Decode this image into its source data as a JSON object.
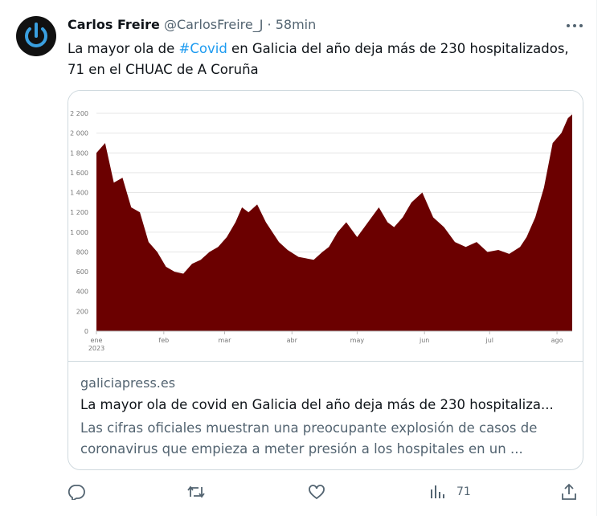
{
  "tweet": {
    "name": "Carlos Freire",
    "handle": "@CarlosFreire_J",
    "separator": "·",
    "time": "58min",
    "text_before": "La mayor ola de ",
    "hashtag": "#Covid",
    "text_after": " en Galicia del año deja más de 230 hospitalizados,",
    "text_line2": "71 en el CHUAC de A Coruña",
    "card": {
      "domain": "galiciapress.es",
      "title": "La mayor ola de covid en Galicia del año deja más de 230 hospitaliza...",
      "description": [
        "Las cifras oficiales muestran una preocupante explosión de casos de",
        "coronavirus que empieza a meter presión a los hospitales en un ..."
      ]
    },
    "views": "71"
  },
  "chart_data": {
    "type": "area",
    "color": "#6b0000",
    "grid": true,
    "x": [
      0,
      4,
      8,
      12,
      16,
      20,
      24,
      28,
      32,
      36,
      40,
      44,
      48,
      52,
      56,
      60,
      64,
      67,
      70,
      74,
      78,
      84,
      88,
      93,
      100,
      104,
      107,
      111,
      115,
      120,
      125,
      130,
      134,
      137,
      141,
      145,
      150,
      155,
      160,
      165,
      170,
      175,
      180,
      185,
      190,
      195,
      198,
      202,
      206,
      210,
      214,
      217,
      219
    ],
    "values": [
      1800,
      1900,
      1500,
      1550,
      1250,
      1200,
      900,
      800,
      650,
      600,
      580,
      680,
      720,
      800,
      850,
      950,
      1100,
      1250,
      1200,
      1280,
      1100,
      900,
      820,
      750,
      720,
      800,
      850,
      1000,
      1100,
      950,
      1100,
      1250,
      1100,
      1050,
      1150,
      1300,
      1400,
      1150,
      1050,
      900,
      850,
      900,
      800,
      820,
      780,
      850,
      950,
      1150,
      1450,
      1900,
      2000,
      2150,
      2190
    ],
    "xlim": [
      0,
      219
    ],
    "xticks": [
      {
        "value": 0,
        "label": "ene"
      },
      {
        "value": 31,
        "label": "feb"
      },
      {
        "value": 59,
        "label": "mar"
      },
      {
        "value": 90,
        "label": "abr"
      },
      {
        "value": 120,
        "label": "may"
      },
      {
        "value": 151,
        "label": "jun"
      },
      {
        "value": 181,
        "label": "jul"
      },
      {
        "value": 212,
        "label": "ago"
      }
    ],
    "year": "2023",
    "ylim": [
      0,
      2200
    ],
    "yticks": [
      0,
      200,
      400,
      600,
      800,
      {
        "value": 1000,
        "label": "1 000"
      },
      {
        "value": 1200,
        "label": "1 200"
      },
      {
        "value": 1400,
        "label": "1 400"
      },
      {
        "value": 1600,
        "label": "1 600"
      },
      {
        "value": 1800,
        "label": "1 800"
      },
      {
        "value": 2000,
        "label": "2 000"
      },
      {
        "value": 2200,
        "label": "2 200"
      }
    ]
  }
}
